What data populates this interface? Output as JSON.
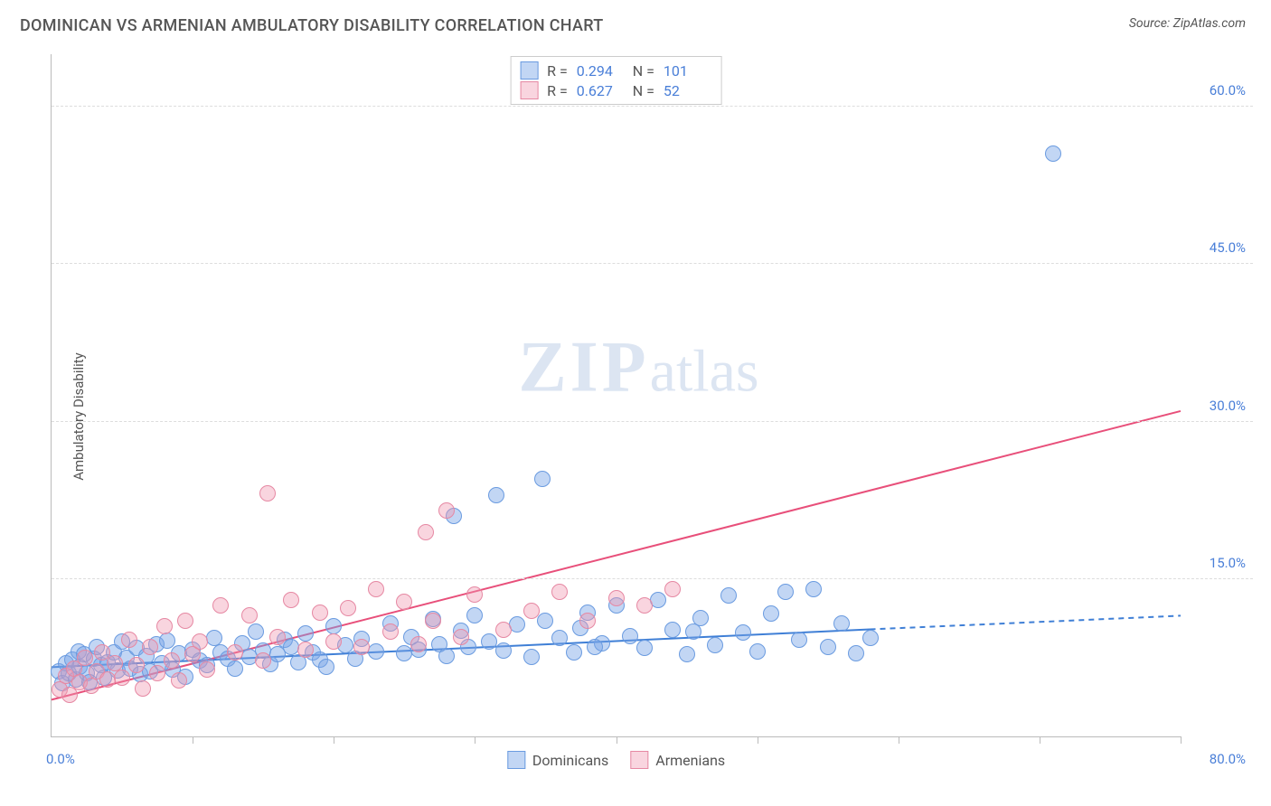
{
  "header": {
    "title": "DOMINICAN VS ARMENIAN AMBULATORY DISABILITY CORRELATION CHART",
    "source": "Source: ZipAtlas.com"
  },
  "ylabel": "Ambulatory Disability",
  "watermark": {
    "zip": "ZIP",
    "atlas": "atlas"
  },
  "chart": {
    "type": "scatter",
    "xlim": [
      0,
      80
    ],
    "ylim": [
      0,
      65
    ],
    "x_ticks": [
      0,
      10,
      20,
      30,
      40,
      50,
      60,
      70,
      80
    ],
    "x_tick_labels": {
      "start": "0.0%",
      "end": "80.0%"
    },
    "y_gridlines": [
      15,
      30,
      45,
      60
    ],
    "y_tick_labels": [
      "15.0%",
      "30.0%",
      "45.0%",
      "60.0%"
    ],
    "grid_color": "#dddddd",
    "axis_color": "#bbbbbb",
    "background_color": "#ffffff",
    "label_color": "#4a7fd8",
    "text_color": "#555555",
    "point_radius": 9,
    "point_stroke_width": 1.4,
    "title_fontsize": 18,
    "label_fontsize": 15
  },
  "series": [
    {
      "name": "Dominicans",
      "fill": "rgba(120,165,230,0.45)",
      "stroke": "#6a9be0",
      "R": "0.294",
      "N": "101",
      "trend": {
        "x1": 0,
        "y1": 6.6,
        "x2": 58,
        "y2": 10.2,
        "dash_to_x": 80,
        "dash_to_y": 11.5,
        "color": "#3f7fd6",
        "width": 2
      },
      "points": [
        [
          0.5,
          6.2
        ],
        [
          0.8,
          5.1
        ],
        [
          1.0,
          7.0
        ],
        [
          1.2,
          6.0
        ],
        [
          1.5,
          7.3
        ],
        [
          1.7,
          5.4
        ],
        [
          1.9,
          8.1
        ],
        [
          2.0,
          6.6
        ],
        [
          2.3,
          7.8
        ],
        [
          2.5,
          6.0
        ],
        [
          2.7,
          5.2
        ],
        [
          3.0,
          7.4
        ],
        [
          3.2,
          8.5
        ],
        [
          3.5,
          6.8
        ],
        [
          3.7,
          5.6
        ],
        [
          4.0,
          7.1
        ],
        [
          4.4,
          8.0
        ],
        [
          4.7,
          6.3
        ],
        [
          5.0,
          9.0
        ],
        [
          5.3,
          7.5
        ],
        [
          5.6,
          6.5
        ],
        [
          6.0,
          8.4
        ],
        [
          6.3,
          5.9
        ],
        [
          6.7,
          7.7
        ],
        [
          7.0,
          6.2
        ],
        [
          7.4,
          8.8
        ],
        [
          7.8,
          7.0
        ],
        [
          8.2,
          9.1
        ],
        [
          8.6,
          6.4
        ],
        [
          9.0,
          7.9
        ],
        [
          9.5,
          5.7
        ],
        [
          10.0,
          8.3
        ],
        [
          10.5,
          7.2
        ],
        [
          11.0,
          6.8
        ],
        [
          11.5,
          9.4
        ],
        [
          12.0,
          8.0
        ],
        [
          12.5,
          7.4
        ],
        [
          13.0,
          6.5
        ],
        [
          13.5,
          8.9
        ],
        [
          14.0,
          7.6
        ],
        [
          14.5,
          10.0
        ],
        [
          15.0,
          8.2
        ],
        [
          15.5,
          6.9
        ],
        [
          16.0,
          7.8
        ],
        [
          16.5,
          9.2
        ],
        [
          17.0,
          8.5
        ],
        [
          17.5,
          7.1
        ],
        [
          18.0,
          9.8
        ],
        [
          18.5,
          8.0
        ],
        [
          19.0,
          7.3
        ],
        [
          19.5,
          6.6
        ],
        [
          20.0,
          10.5
        ],
        [
          20.8,
          8.7
        ],
        [
          21.5,
          7.4
        ],
        [
          22.0,
          9.3
        ],
        [
          23.0,
          8.1
        ],
        [
          24.0,
          10.8
        ],
        [
          25.0,
          7.9
        ],
        [
          25.5,
          9.5
        ],
        [
          26.0,
          8.3
        ],
        [
          27.0,
          11.2
        ],
        [
          27.5,
          8.8
        ],
        [
          28.0,
          7.7
        ],
        [
          28.5,
          21.0
        ],
        [
          29.0,
          10.1
        ],
        [
          29.5,
          8.5
        ],
        [
          30.0,
          11.5
        ],
        [
          31.0,
          9.0
        ],
        [
          31.5,
          23.0
        ],
        [
          32.0,
          8.2
        ],
        [
          33.0,
          10.7
        ],
        [
          34.0,
          7.6
        ],
        [
          34.8,
          24.5
        ],
        [
          35.0,
          11.0
        ],
        [
          36.0,
          9.4
        ],
        [
          37.0,
          8.0
        ],
        [
          37.5,
          10.3
        ],
        [
          38.0,
          11.8
        ],
        [
          39.0,
          8.9
        ],
        [
          40.0,
          12.5
        ],
        [
          41.0,
          9.6
        ],
        [
          42.0,
          8.4
        ],
        [
          43.0,
          13.0
        ],
        [
          44.0,
          10.2
        ],
        [
          45.0,
          7.8
        ],
        [
          46.0,
          11.3
        ],
        [
          47.0,
          8.7
        ],
        [
          48.0,
          13.4
        ],
        [
          49.0,
          9.9
        ],
        [
          50.0,
          8.1
        ],
        [
          51.0,
          11.7
        ],
        [
          52.0,
          13.8
        ],
        [
          53.0,
          9.2
        ],
        [
          54.0,
          14.0
        ],
        [
          55.0,
          8.5
        ],
        [
          56.0,
          10.8
        ],
        [
          57.0,
          7.9
        ],
        [
          58.0,
          9.4
        ],
        [
          71.0,
          55.5
        ],
        [
          45.5,
          10.0
        ],
        [
          38.5,
          8.5
        ]
      ]
    },
    {
      "name": "Armenians",
      "fill": "rgba(240,150,175,0.4)",
      "stroke": "#e688a3",
      "R": "0.627",
      "N": "52",
      "trend": {
        "x1": 0,
        "y1": 3.5,
        "x2": 80,
        "y2": 31.0,
        "color": "#e84f7a",
        "width": 2
      },
      "points": [
        [
          0.6,
          4.5
        ],
        [
          1.0,
          5.8
        ],
        [
          1.3,
          4.0
        ],
        [
          1.6,
          6.5
        ],
        [
          2.0,
          5.2
        ],
        [
          2.4,
          7.5
        ],
        [
          2.8,
          4.8
        ],
        [
          3.2,
          6.2
        ],
        [
          3.6,
          8.0
        ],
        [
          4.0,
          5.4
        ],
        [
          4.5,
          7.0
        ],
        [
          5.0,
          5.6
        ],
        [
          5.5,
          9.2
        ],
        [
          6.0,
          6.8
        ],
        [
          6.5,
          4.6
        ],
        [
          7.0,
          8.5
        ],
        [
          7.5,
          6.0
        ],
        [
          8.0,
          10.5
        ],
        [
          8.5,
          7.2
        ],
        [
          9.0,
          5.3
        ],
        [
          9.5,
          11.0
        ],
        [
          10.0,
          7.8
        ],
        [
          10.5,
          9.0
        ],
        [
          11.0,
          6.4
        ],
        [
          12.0,
          12.5
        ],
        [
          13.0,
          8.0
        ],
        [
          14.0,
          11.5
        ],
        [
          15.0,
          7.2
        ],
        [
          15.3,
          23.2
        ],
        [
          16.0,
          9.5
        ],
        [
          17.0,
          13.0
        ],
        [
          18.0,
          8.3
        ],
        [
          19.0,
          11.8
        ],
        [
          20.0,
          9.0
        ],
        [
          21.0,
          12.2
        ],
        [
          22.0,
          8.5
        ],
        [
          23.0,
          14.0
        ],
        [
          24.0,
          10.0
        ],
        [
          25.0,
          12.8
        ],
        [
          26.0,
          8.8
        ],
        [
          26.5,
          19.5
        ],
        [
          27.0,
          11.0
        ],
        [
          28.0,
          21.5
        ],
        [
          29.0,
          9.5
        ],
        [
          30.0,
          13.5
        ],
        [
          32.0,
          10.2
        ],
        [
          34.0,
          12.0
        ],
        [
          36.0,
          13.8
        ],
        [
          38.0,
          11.0
        ],
        [
          40.0,
          13.2
        ],
        [
          42.0,
          12.5
        ],
        [
          44.0,
          14.0
        ]
      ]
    }
  ],
  "legend_top_labels": {
    "r": "R =",
    "n": "N ="
  },
  "legend_bottom": [
    {
      "label": "Dominicans",
      "fill": "rgba(120,165,230,0.45)",
      "stroke": "#6a9be0"
    },
    {
      "label": "Armenians",
      "fill": "rgba(240,150,175,0.4)",
      "stroke": "#e688a3"
    }
  ]
}
